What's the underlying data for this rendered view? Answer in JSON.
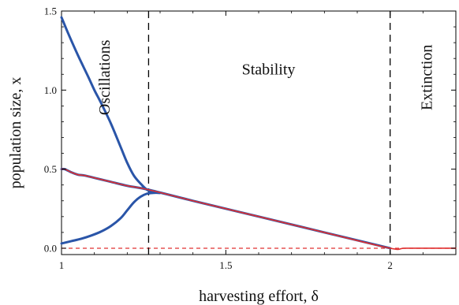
{
  "chart_data": {
    "type": "line",
    "title": "",
    "xlabel": "harvesting effort, δ",
    "ylabel": "population size, x",
    "xlim": [
      1.0,
      2.2
    ],
    "ylim": [
      -0.04,
      1.5
    ],
    "x_ticks": [
      1,
      1.5,
      2
    ],
    "x_tick_labels": [
      "1",
      "1.5",
      "2"
    ],
    "y_ticks": [
      0.0,
      0.5,
      1.0,
      1.5
    ],
    "y_tick_labels": [
      "0.0",
      "0.5",
      "1.0",
      "1.5"
    ],
    "grid": false,
    "legend": "none",
    "thresholds": [
      {
        "x": 1.265,
        "style": "dashed",
        "color": "#000000"
      },
      {
        "x": 2.0,
        "style": "dashed",
        "color": "#000000"
      }
    ],
    "baseline": {
      "y": 0.0,
      "style": "dashed",
      "color": "#e03030"
    },
    "regions": [
      {
        "label": "Oscillations",
        "orientation": "vertical",
        "x": 1.13,
        "y": 1.08
      },
      {
        "label": "Stability",
        "orientation": "horizontal",
        "x": 1.63,
        "y": 1.1
      },
      {
        "label": "Extinction",
        "orientation": "vertical",
        "x": 2.11,
        "y": 1.08
      }
    ],
    "series": [
      {
        "role": "upper-branch",
        "color": "#2a55a8",
        "x": [
          1.0,
          1.02,
          1.05,
          1.08,
          1.1,
          1.12,
          1.15,
          1.18,
          1.2,
          1.22,
          1.24,
          1.26,
          1.28,
          1.3
        ],
        "y": [
          1.46,
          1.36,
          1.22,
          1.09,
          1.0,
          0.92,
          0.79,
          0.64,
          0.54,
          0.46,
          0.41,
          0.37,
          0.355,
          0.35
        ]
      },
      {
        "role": "lower-branch",
        "color": "#2a55a8",
        "x": [
          1.0,
          1.03,
          1.06,
          1.09,
          1.12,
          1.15,
          1.18,
          1.2,
          1.22,
          1.24,
          1.26,
          1.28,
          1.3
        ],
        "y": [
          0.03,
          0.045,
          0.06,
          0.08,
          0.105,
          0.14,
          0.19,
          0.24,
          0.29,
          0.325,
          0.345,
          0.35,
          0.35
        ]
      },
      {
        "role": "equilibrium-blue",
        "color": "#2a55a8",
        "x": [
          1.0,
          1.01,
          1.03,
          1.05,
          1.07,
          1.1,
          1.15,
          1.2,
          1.265,
          1.4,
          1.6,
          1.8,
          2.0
        ],
        "y": [
          0.5,
          0.5,
          0.48,
          0.465,
          0.46,
          0.445,
          0.42,
          0.395,
          0.37,
          0.3,
          0.2,
          0.1,
          0.0
        ]
      },
      {
        "role": "equilibrium-red",
        "color": "#e03030",
        "x": [
          1.0,
          1.01,
          1.03,
          1.05,
          1.07,
          1.1,
          1.15,
          1.2,
          1.265,
          1.4,
          1.6,
          1.8,
          2.0,
          2.05,
          2.2
        ],
        "y": [
          0.5,
          0.5,
          0.48,
          0.465,
          0.46,
          0.445,
          0.42,
          0.395,
          0.37,
          0.3,
          0.2,
          0.1,
          0.0,
          0.0,
          0.0
        ]
      }
    ]
  }
}
